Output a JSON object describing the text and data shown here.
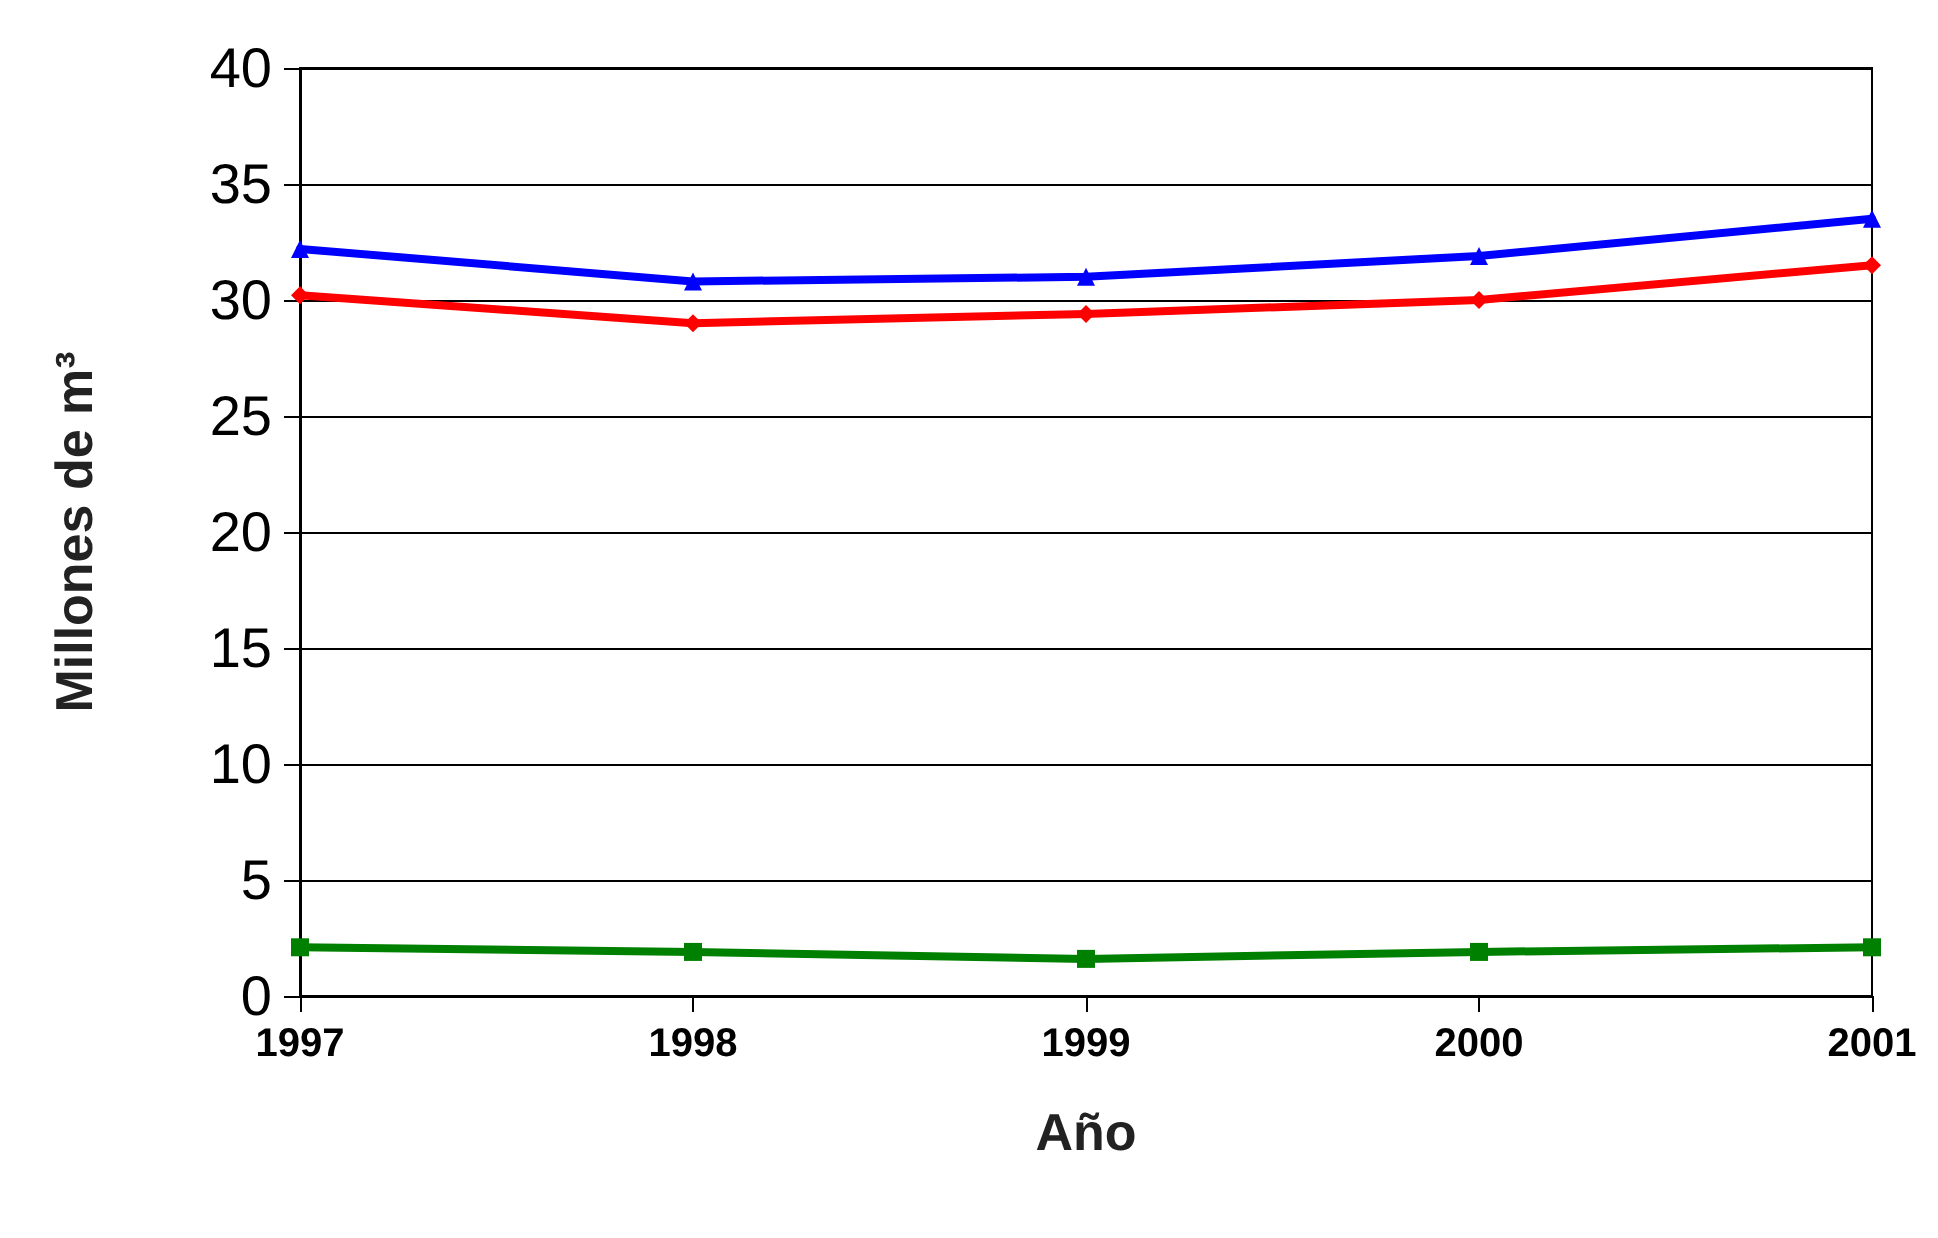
{
  "chart_data": {
    "type": "line",
    "xlabel": "Año",
    "ylabel": "Millones de m³",
    "categories": [
      "1997",
      "1998",
      "1999",
      "2000",
      "2001"
    ],
    "series": [
      {
        "color": "#0000ff",
        "marker": "triangle",
        "values": [
          32.2,
          30.8,
          31.0,
          31.9,
          33.5
        ]
      },
      {
        "color": "#ff0000",
        "marker": "diamond",
        "values": [
          30.2,
          29.0,
          29.4,
          30.0,
          31.5
        ]
      },
      {
        "color": "#008000",
        "marker": "square",
        "values": [
          2.1,
          1.9,
          1.6,
          1.9,
          2.1
        ]
      }
    ],
    "ylim": [
      0,
      40
    ],
    "yticks": [
      0,
      5,
      10,
      15,
      20,
      25,
      30,
      35,
      40
    ],
    "grid": "y"
  }
}
